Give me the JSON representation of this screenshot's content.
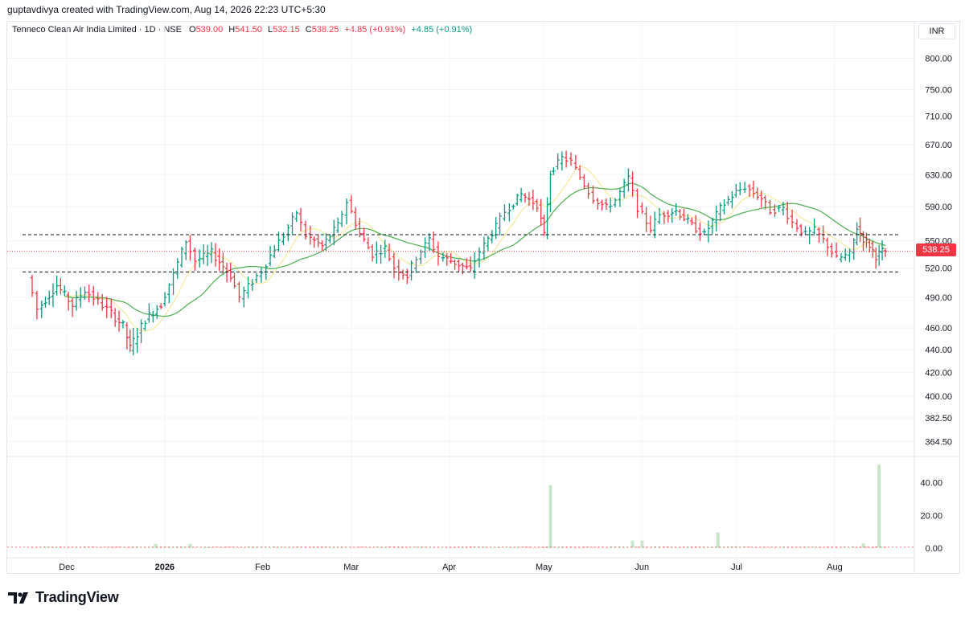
{
  "header": {
    "credit": "guptavdivya created with TradingView.com, Aug 14, 2026 22:23 UTC+5:30",
    "symbol": "Tenneco Clean Air India Limited · 1D · NSE",
    "o_label": "O",
    "o_value": "539.00",
    "h_label": "H",
    "h_value": "541.50",
    "l_label": "L",
    "l_value": "532.15",
    "c_label": "C",
    "c_value": "538.25",
    "change": "+4.85 (+0.91%)",
    "change2": "+4.85 (+0.91%)"
  },
  "currency": "INR",
  "last_price_label": "538.25",
  "brand": "TradingView",
  "colors": {
    "up": "#089981",
    "down": "#f23645",
    "ma_fast": "#f5e99a",
    "ma_slow": "#4caf50",
    "volume_up": "#c8e6c9",
    "volume_down": "#f8c8cc"
  },
  "chart_data": {
    "type": "ohlc",
    "price_axis": {
      "ticks": [
        "800.00",
        "750.00",
        "710.00",
        "670.00",
        "630.00",
        "590.00",
        "550.00",
        "520.00",
        "490.00",
        "460.00",
        "440.00",
        "420.00",
        "400.00",
        "382.50",
        "364.50"
      ],
      "scale": "log",
      "ylim": [
        354,
        830
      ]
    },
    "volume_axis": {
      "ticks": [
        "40.00",
        "20.00",
        "0.00"
      ],
      "ylim": [
        0,
        55
      ]
    },
    "x_ticks": [
      "Dec",
      "2026",
      "Feb",
      "Mar",
      "Apr",
      "May",
      "Jun",
      "Jul",
      "Aug"
    ],
    "horizontal_lines": [
      557,
      516
    ],
    "last_price": 538.25,
    "series": [
      {
        "name": "OHLC",
        "bars": []
      },
      {
        "name": "Volume",
        "values": []
      }
    ],
    "anchors": [
      {
        "date": "2025-11-17",
        "close": 510
      },
      {
        "date": "2025-11-20",
        "close": 478
      },
      {
        "date": "2025-11-26",
        "close": 502
      },
      {
        "date": "2025-12-01",
        "close": 482
      },
      {
        "date": "2025-12-05",
        "close": 497
      },
      {
        "date": "2025-12-12",
        "close": 478
      },
      {
        "date": "2025-12-17",
        "close": 462
      },
      {
        "date": "2025-12-19",
        "close": 441
      },
      {
        "date": "2025-12-24",
        "close": 468
      },
      {
        "date": "2025-12-29",
        "close": 483
      },
      {
        "date": "2026-01-02",
        "close": 513
      },
      {
        "date": "2026-01-06",
        "close": 550
      },
      {
        "date": "2026-01-09",
        "close": 528
      },
      {
        "date": "2026-01-14",
        "close": 537
      },
      {
        "date": "2026-01-20",
        "close": 512
      },
      {
        "date": "2026-01-23",
        "close": 490
      },
      {
        "date": "2026-01-27",
        "close": 506
      },
      {
        "date": "2026-01-30",
        "close": 517
      },
      {
        "date": "2026-02-03",
        "close": 542
      },
      {
        "date": "2026-02-06",
        "close": 556
      },
      {
        "date": "2026-02-10",
        "close": 583
      },
      {
        "date": "2026-02-13",
        "close": 556
      },
      {
        "date": "2026-02-18",
        "close": 544
      },
      {
        "date": "2026-02-23",
        "close": 568
      },
      {
        "date": "2026-02-26",
        "close": 596
      },
      {
        "date": "2026-03-02",
        "close": 558
      },
      {
        "date": "2026-03-06",
        "close": 535
      },
      {
        "date": "2026-03-10",
        "close": 542
      },
      {
        "date": "2026-03-13",
        "close": 521
      },
      {
        "date": "2026-03-17",
        "close": 512
      },
      {
        "date": "2026-03-20",
        "close": 532
      },
      {
        "date": "2026-03-24",
        "close": 552
      },
      {
        "date": "2026-03-27",
        "close": 533
      },
      {
        "date": "2026-04-01",
        "close": 526
      },
      {
        "date": "2026-04-06",
        "close": 518
      },
      {
        "date": "2026-04-09",
        "close": 538
      },
      {
        "date": "2026-04-14",
        "close": 566
      },
      {
        "date": "2026-04-17",
        "close": 584
      },
      {
        "date": "2026-04-22",
        "close": 605
      },
      {
        "date": "2026-04-27",
        "close": 592
      },
      {
        "date": "2026-04-29",
        "close": 556
      },
      {
        "date": "2026-05-01",
        "close": 632
      },
      {
        "date": "2026-05-05",
        "close": 652
      },
      {
        "date": "2026-05-08",
        "close": 647
      },
      {
        "date": "2026-05-12",
        "close": 617
      },
      {
        "date": "2026-05-15",
        "close": 600
      },
      {
        "date": "2026-05-19",
        "close": 589
      },
      {
        "date": "2026-05-22",
        "close": 598
      },
      {
        "date": "2026-05-26",
        "close": 626
      },
      {
        "date": "2026-05-29",
        "close": 588
      },
      {
        "date": "2026-06-02",
        "close": 564
      },
      {
        "date": "2026-06-05",
        "close": 580
      },
      {
        "date": "2026-06-10",
        "close": 585
      },
      {
        "date": "2026-06-15",
        "close": 568
      },
      {
        "date": "2026-06-19",
        "close": 557
      },
      {
        "date": "2026-06-24",
        "close": 588
      },
      {
        "date": "2026-06-29",
        "close": 608
      },
      {
        "date": "2026-07-02",
        "close": 614
      },
      {
        "date": "2026-07-07",
        "close": 600
      },
      {
        "date": "2026-07-10",
        "close": 585
      },
      {
        "date": "2026-07-14",
        "close": 588
      },
      {
        "date": "2026-07-17",
        "close": 571
      },
      {
        "date": "2026-07-21",
        "close": 557
      },
      {
        "date": "2026-07-24",
        "close": 562
      },
      {
        "date": "2026-07-28",
        "close": 545
      },
      {
        "date": "2026-07-31",
        "close": 530
      },
      {
        "date": "2026-08-04",
        "close": 535
      },
      {
        "date": "2026-08-06",
        "close": 565
      },
      {
        "date": "2026-08-08",
        "close": 552
      },
      {
        "date": "2026-08-10",
        "close": 545
      },
      {
        "date": "2026-08-12",
        "close": 533
      },
      {
        "date": "2026-08-14",
        "close": 538.25
      }
    ],
    "volume_spikes": [
      {
        "date": "2026-04-30",
        "value": 38.5
      },
      {
        "date": "2026-05-26",
        "value": 4.5
      },
      {
        "date": "2026-05-29",
        "value": 4.5
      },
      {
        "date": "2026-06-22",
        "value": 9.5
      },
      {
        "date": "2026-08-07",
        "value": 3
      },
      {
        "date": "2026-08-12",
        "value": 51
      },
      {
        "date": "2026-01-06",
        "value": 2.5
      },
      {
        "date": "2025-12-26",
        "value": 2.5
      }
    ]
  }
}
